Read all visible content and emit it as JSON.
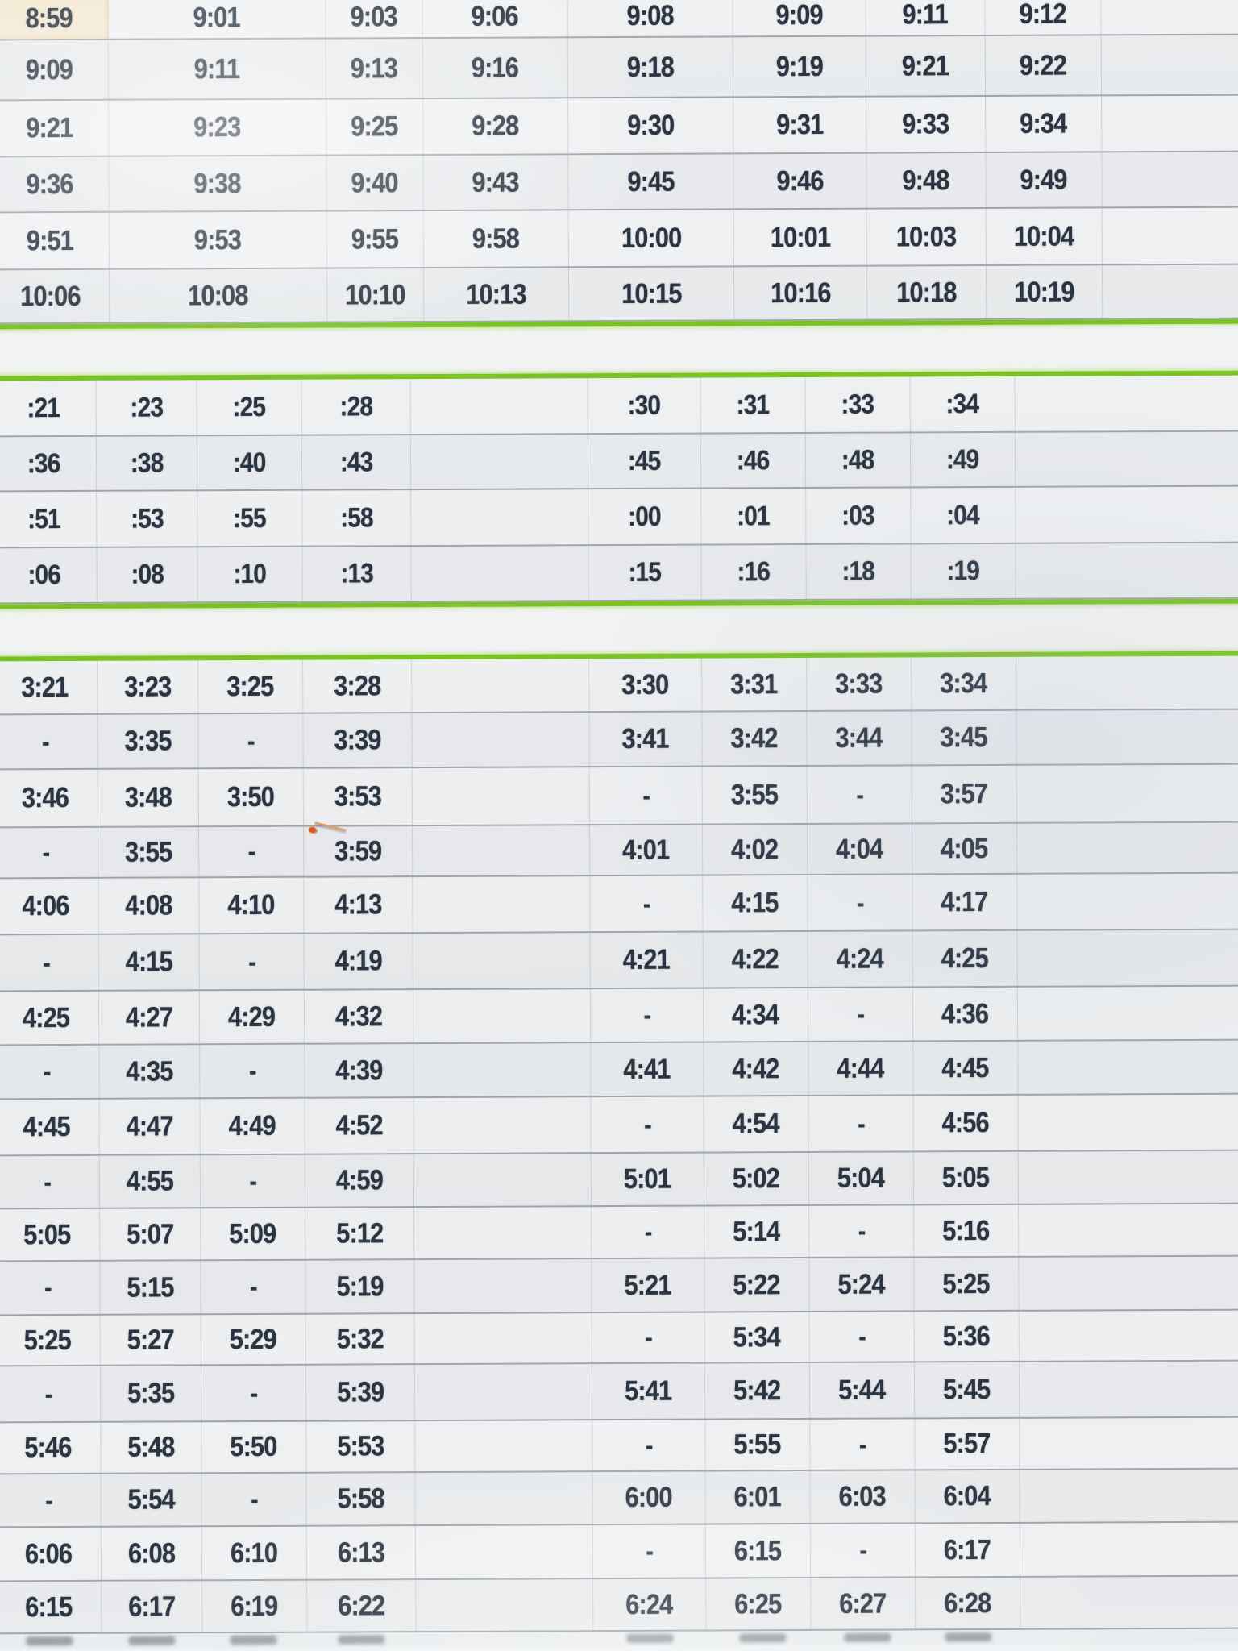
{
  "document": {
    "type": "transit-timetable-photo",
    "colors": {
      "paper": "#eef0f1",
      "ink": "#2b3541",
      "horizontal_grid": "#646b75",
      "vertical_grid": "#949ca6",
      "green_separator": "#79c41f",
      "highlight_cell": "#f3e9d2",
      "scratch_orange": "#e0561a",
      "scratch_tan": "#d9a36b"
    },
    "highlight": {
      "section": 0,
      "row": 0,
      "col": 0,
      "value": "8:59"
    }
  },
  "sections": [
    {
      "id": "morning-times",
      "rows": [
        [
          "8:59",
          "9:01",
          "9:03",
          "9:06",
          "9:08",
          "9:09",
          "9:11",
          "9:12"
        ],
        [
          "9:09",
          "9:11",
          "9:13",
          "9:16",
          "9:18",
          "9:19",
          "9:21",
          "9:22"
        ],
        [
          "9:21",
          "9:23",
          "9:25",
          "9:28",
          "9:30",
          "9:31",
          "9:33",
          "9:34"
        ],
        [
          "9:36",
          "9:38",
          "9:40",
          "9:43",
          "9:45",
          "9:46",
          "9:48",
          "9:49"
        ],
        [
          "9:51",
          "9:53",
          "9:55",
          "9:58",
          "10:00",
          "10:01",
          "10:03",
          "10:04"
        ],
        [
          "10:06",
          "10:08",
          "10:10",
          "10:13",
          "10:15",
          "10:16",
          "10:18",
          "10:19"
        ]
      ]
    },
    {
      "id": "minutes-past-hour",
      "rows": [
        [
          ":21",
          ":23",
          ":25",
          ":28",
          ":30",
          ":31",
          ":33",
          ":34"
        ],
        [
          ":36",
          ":38",
          ":40",
          ":43",
          ":45",
          ":46",
          ":48",
          ":49"
        ],
        [
          ":51",
          ":53",
          ":55",
          ":58",
          ":00",
          ":01",
          ":03",
          ":04"
        ],
        [
          ":06",
          ":08",
          ":10",
          ":13",
          ":15",
          ":16",
          ":18",
          ":19"
        ]
      ]
    },
    {
      "id": "afternoon-times",
      "rows": [
        [
          "3:21",
          "3:23",
          "3:25",
          "3:28",
          "3:30",
          "3:31",
          "3:33",
          "3:34"
        ],
        [
          "-",
          "3:35",
          "-",
          "3:39",
          "3:41",
          "3:42",
          "3:44",
          "3:45"
        ],
        [
          "3:46",
          "3:48",
          "3:50",
          "3:53",
          "-",
          "3:55",
          "-",
          "3:57"
        ],
        [
          "-",
          "3:55",
          "-",
          "3:59",
          "4:01",
          "4:02",
          "4:04",
          "4:05"
        ],
        [
          "4:06",
          "4:08",
          "4:10",
          "4:13",
          "-",
          "4:15",
          "-",
          "4:17"
        ],
        [
          "-",
          "4:15",
          "-",
          "4:19",
          "4:21",
          "4:22",
          "4:24",
          "4:25"
        ],
        [
          "4:25",
          "4:27",
          "4:29",
          "4:32",
          "-",
          "4:34",
          "-",
          "4:36"
        ],
        [
          "-",
          "4:35",
          "-",
          "4:39",
          "4:41",
          "4:42",
          "4:44",
          "4:45"
        ],
        [
          "4:45",
          "4:47",
          "4:49",
          "4:52",
          "-",
          "4:54",
          "-",
          "4:56"
        ],
        [
          "-",
          "4:55",
          "-",
          "4:59",
          "5:01",
          "5:02",
          "5:04",
          "5:05"
        ],
        [
          "5:05",
          "5:07",
          "5:09",
          "5:12",
          "-",
          "5:14",
          "-",
          "5:16"
        ],
        [
          "-",
          "5:15",
          "-",
          "5:19",
          "5:21",
          "5:22",
          "5:24",
          "5:25"
        ],
        [
          "5:25",
          "5:27",
          "5:29",
          "5:32",
          "-",
          "5:34",
          "-",
          "5:36"
        ],
        [
          "-",
          "5:35",
          "-",
          "5:39",
          "5:41",
          "5:42",
          "5:44",
          "5:45"
        ],
        [
          "5:46",
          "5:48",
          "5:50",
          "5:53",
          "-",
          "5:55",
          "-",
          "5:57"
        ],
        [
          "-",
          "5:54",
          "-",
          "5:58",
          "6:00",
          "6:01",
          "6:03",
          "6:04"
        ],
        [
          "6:06",
          "6:08",
          "6:10",
          "6:13",
          "-",
          "6:15",
          "-",
          "6:17"
        ],
        [
          "6:15",
          "6:17",
          "6:19",
          "6:22",
          "6:24",
          "6:25",
          "6:27",
          "6:28"
        ]
      ]
    }
  ]
}
